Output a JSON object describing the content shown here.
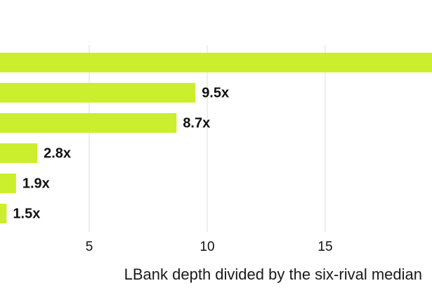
{
  "chart_data": {
    "type": "bar",
    "orientation": "horizontal",
    "categories": [
      "",
      "",
      "",
      "",
      "",
      ""
    ],
    "values": [
      20.2,
      9.5,
      8.7,
      2.8,
      1.9,
      1.5
    ],
    "data_labels": [
      "",
      "9.5x",
      "8.7x",
      "2.8x",
      "1.9x",
      "1.5x"
    ],
    "xlabel": "LBank depth divided by the six-rival median",
    "xticks": [
      5,
      10,
      15
    ],
    "xtick_labels": [
      "5",
      "10",
      "15"
    ],
    "grid": true,
    "colors": {
      "bar": "#cbef2d",
      "grid": "#dddddd",
      "text": "#111111"
    }
  }
}
